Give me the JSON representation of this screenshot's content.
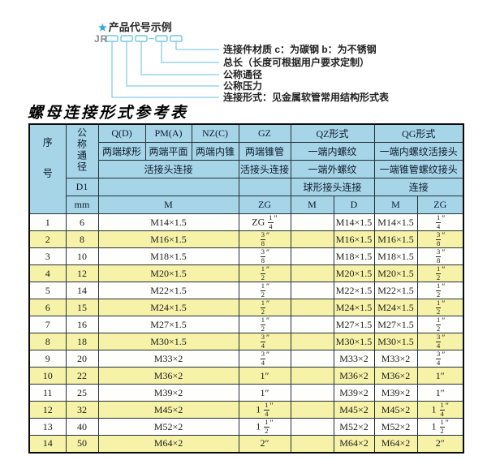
{
  "colors": {
    "page_bg": "#ffffff",
    "header_bg": "#a6d5e8",
    "row_bg": "#fefefd",
    "row_alt_bg": "#f6f2a7",
    "accent_cyan_star": "#2aa9dc",
    "accent_cyan_line": "#85cee4"
  },
  "diagram": {
    "star": "★",
    "title": "产品代号示例",
    "prefix": "JR",
    "labels": [
      "连接件材质  c：为碳钢  b：为不锈钢",
      "总长（长度可根据用户要求定制）",
      "公称通径",
      "公称压力",
      "连接形式：见金属软管常用结构形式表"
    ]
  },
  "table_title": "螺母连接形式参考表",
  "table": {
    "header": {
      "xuhao": "序号",
      "tongjing": "公称通径",
      "d1": "D1",
      "mm": "mm",
      "q": "Q(D)",
      "q_desc": "两端球形",
      "pm": "PM(A)",
      "pm_desc": "两端平面",
      "nz": "NZ(C)",
      "nz_desc": "两端内锥",
      "gz": "GZ",
      "gz_desc": "两端锥管",
      "huojietou": "活接头连接",
      "gz_huojietou": "活接头连接",
      "qz": "QZ形式",
      "qz_row2": "一端内螺纹",
      "qz_row3": "一端外螺纹",
      "qz_row4": "球形接头连接",
      "qg": "QG形式",
      "qg_row2": "一端内螺纹活接头",
      "qg_row3": "一端锥管螺纹接头",
      "qg_row4": "连接",
      "m1": "M",
      "zg1": "ZG",
      "m2": "M",
      "d": "D",
      "m3": "M",
      "zg2": "ZG"
    },
    "col_keys": [
      "no",
      "mm",
      "m",
      "gz",
      "qz-m",
      "qz-d",
      "qg-m",
      "qg-zg"
    ],
    "rows": [
      [
        "1",
        "6",
        "M14×1.5",
        "ZG 1/4″",
        "",
        "M14×1.5",
        "M14×1.5",
        "1/4″"
      ],
      [
        "2",
        "8",
        "M16×1.5",
        "3/8″",
        "",
        "M16×1.5",
        "M16×1.5",
        "3/8″"
      ],
      [
        "3",
        "10",
        "M18×1.5",
        "3/8″",
        "",
        "M18×1.5",
        "M18×1.5",
        "3/8″"
      ],
      [
        "4",
        "12",
        "M20×1.5",
        "1/2″",
        "",
        "M20×1.5",
        "M20×1.5",
        "1/2″"
      ],
      [
        "5",
        "14",
        "M22×1.5",
        "1/2″",
        "",
        "M22×1.5",
        "M22×1.5",
        "1/2″"
      ],
      [
        "6",
        "15",
        "M24×1.5",
        "1/2″",
        "",
        "M24×1.5",
        "M24×1.5",
        "1/2″"
      ],
      [
        "7",
        "16",
        "M27×1.5",
        "1/2″",
        "",
        "M27×1.5",
        "M27×1.5",
        "1/2″"
      ],
      [
        "8",
        "18",
        "M30×1.5",
        "3/4″",
        "",
        "M30×1.5",
        "M30×1.5",
        "3/4″"
      ],
      [
        "9",
        "20",
        "M33×2",
        "3/4″",
        "",
        "M33×2",
        "M33×2",
        "3/4″"
      ],
      [
        "10",
        "22",
        "M36×2",
        "1″",
        "",
        "M36×2",
        "M36×2",
        "1″"
      ],
      [
        "11",
        "25",
        "M39×2",
        "1″",
        "",
        "M39×2",
        "M39×2",
        "1″"
      ],
      [
        "12",
        "32",
        "M45×2",
        "1 1/4″",
        "",
        "M45×2",
        "M45×2",
        "1 1/4″"
      ],
      [
        "13",
        "40",
        "M52×2",
        "1 1/2″",
        "",
        "M52×2",
        "M52×2",
        "1 1/2″"
      ],
      [
        "14",
        "50",
        "M64×2",
        "2″",
        "",
        "M64×2",
        "M64×2",
        "2″"
      ]
    ]
  }
}
